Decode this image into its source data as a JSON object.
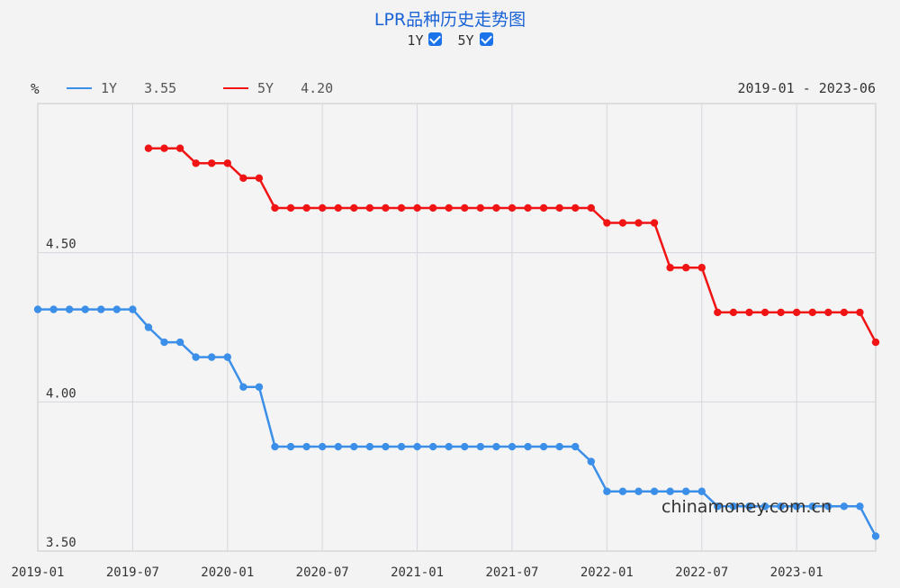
{
  "chart_data": {
    "type": "line",
    "title": "LPR品种历史走势图",
    "ylabel": "%",
    "date_range": "2019-01 - 2023-06",
    "ylim": [
      3.5,
      5.0
    ],
    "yticks": [
      "4.50",
      "4.00",
      "3.50"
    ],
    "xticks": [
      "2019-01",
      "2019-07",
      "2020-01",
      "2020-07",
      "2021-01",
      "2021-07",
      "2022-01",
      "2022-07",
      "2023-01"
    ],
    "x": [
      "2019-01",
      "2019-02",
      "2019-03",
      "2019-04",
      "2019-05",
      "2019-06",
      "2019-07",
      "2019-08",
      "2019-09",
      "2019-10",
      "2019-11",
      "2019-12",
      "2020-01",
      "2020-02",
      "2020-03",
      "2020-04",
      "2020-05",
      "2020-06",
      "2020-07",
      "2020-08",
      "2020-09",
      "2020-10",
      "2020-11",
      "2020-12",
      "2021-01",
      "2021-02",
      "2021-03",
      "2021-04",
      "2021-05",
      "2021-06",
      "2021-07",
      "2021-08",
      "2021-09",
      "2021-10",
      "2021-11",
      "2021-12",
      "2022-01",
      "2022-02",
      "2022-03",
      "2022-04",
      "2022-05",
      "2022-06",
      "2022-07",
      "2022-08",
      "2022-09",
      "2022-10",
      "2022-11",
      "2022-12",
      "2023-01",
      "2023-02",
      "2023-03",
      "2023-04",
      "2023-05",
      "2023-06"
    ],
    "series": [
      {
        "name": "1Y",
        "color": "#3b8fe8",
        "latest": "3.55",
        "values": [
          4.31,
          4.31,
          4.31,
          4.31,
          4.31,
          4.31,
          4.31,
          4.25,
          4.2,
          4.2,
          4.15,
          4.15,
          4.15,
          4.05,
          4.05,
          3.85,
          3.85,
          3.85,
          3.85,
          3.85,
          3.85,
          3.85,
          3.85,
          3.85,
          3.85,
          3.85,
          3.85,
          3.85,
          3.85,
          3.85,
          3.85,
          3.85,
          3.85,
          3.85,
          3.85,
          3.8,
          3.7,
          3.7,
          3.7,
          3.7,
          3.7,
          3.7,
          3.7,
          3.65,
          3.65,
          3.65,
          3.65,
          3.65,
          3.65,
          3.65,
          3.65,
          3.65,
          3.65,
          3.55
        ]
      },
      {
        "name": "5Y",
        "color": "#f01414",
        "latest": "4.20",
        "values": [
          null,
          null,
          null,
          null,
          null,
          null,
          null,
          4.85,
          4.85,
          4.85,
          4.8,
          4.8,
          4.8,
          4.75,
          4.75,
          4.65,
          4.65,
          4.65,
          4.65,
          4.65,
          4.65,
          4.65,
          4.65,
          4.65,
          4.65,
          4.65,
          4.65,
          4.65,
          4.65,
          4.65,
          4.65,
          4.65,
          4.65,
          4.65,
          4.65,
          4.65,
          4.6,
          4.6,
          4.6,
          4.6,
          4.45,
          4.45,
          4.45,
          4.3,
          4.3,
          4.3,
          4.3,
          4.3,
          4.3,
          4.3,
          4.3,
          4.3,
          4.3,
          4.2
        ]
      }
    ],
    "grid": true,
    "legend": "top-left"
  },
  "watermark": "chinamoney.com.cn"
}
